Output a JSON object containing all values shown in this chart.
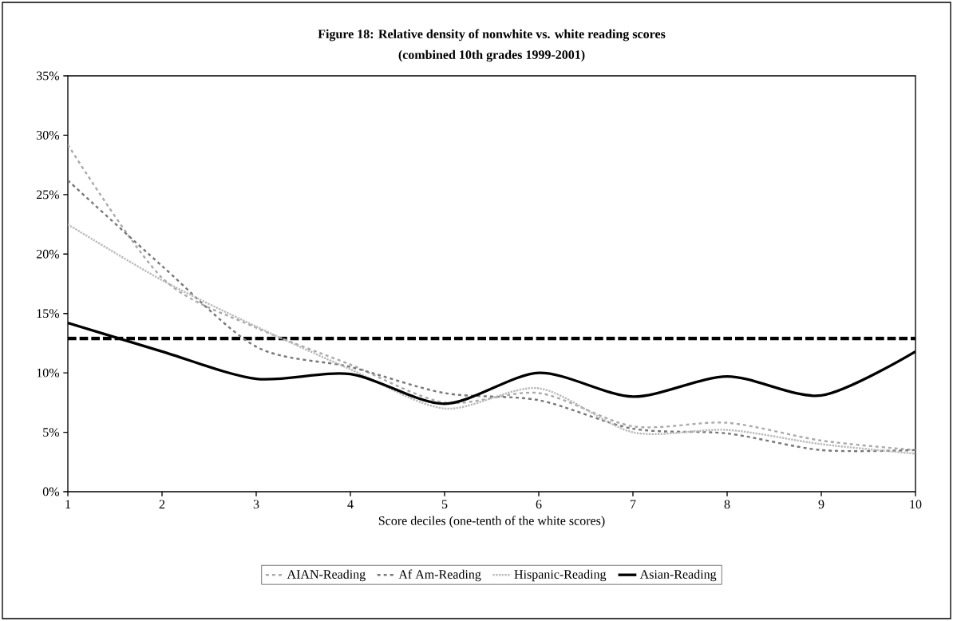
{
  "chart_data": {
    "type": "line",
    "title": "Figure 18: Relative density of nonwhite vs. white reading scores",
    "subtitle": "(combined 10th grades 1999-2001)",
    "xlabel": "Score deciles (one-tenth of the white scores)",
    "x": [
      1,
      2,
      3,
      4,
      5,
      6,
      7,
      8,
      9,
      10
    ],
    "series": [
      {
        "name": "AIAN-Reading",
        "color": "#aaaaaa",
        "line_style": "dashed",
        "values": [
          29.2,
          18.0,
          13.8,
          10.7,
          7.5,
          8.3,
          5.5,
          5.8,
          4.3,
          3.5
        ]
      },
      {
        "name": "Af Am-Reading",
        "color": "#777777",
        "line_style": "dashed",
        "values": [
          26.2,
          19.0,
          12.2,
          10.5,
          8.3,
          7.7,
          5.3,
          4.9,
          3.5,
          3.5
        ]
      },
      {
        "name": "Hispanic-Reading",
        "color": "#bbbbbb",
        "line_style": "dotted",
        "values": [
          22.5,
          17.8,
          13.9,
          10.3,
          7.0,
          8.7,
          5.0,
          5.2,
          4.0,
          3.2
        ]
      },
      {
        "name": "Asian-Reading",
        "color": "#000000",
        "line_style": "solid",
        "values": [
          14.2,
          11.8,
          9.5,
          9.9,
          7.4,
          10.0,
          8.0,
          9.7,
          8.1,
          11.8
        ]
      }
    ],
    "ref_lines": [
      {
        "axis": "y",
        "value": 12.9,
        "color": "#000000",
        "line_style": "dashed"
      }
    ],
    "xlim": [
      1,
      10
    ],
    "xticks": [
      1,
      2,
      3,
      4,
      5,
      6,
      7,
      8,
      9,
      10
    ],
    "ylim": [
      0,
      35
    ],
    "yticks": [
      {
        "value": 0,
        "label": "0%"
      },
      {
        "value": 5,
        "label": "5%"
      },
      {
        "value": 10,
        "label": "10%"
      },
      {
        "value": 15,
        "label": "15%"
      },
      {
        "value": 20,
        "label": "20%"
      },
      {
        "value": 25,
        "label": "25%"
      },
      {
        "value": 30,
        "label": "30%"
      },
      {
        "value": 35,
        "label": "35%"
      }
    ],
    "grid": false,
    "legend": "bottom",
    "marker": "none"
  }
}
